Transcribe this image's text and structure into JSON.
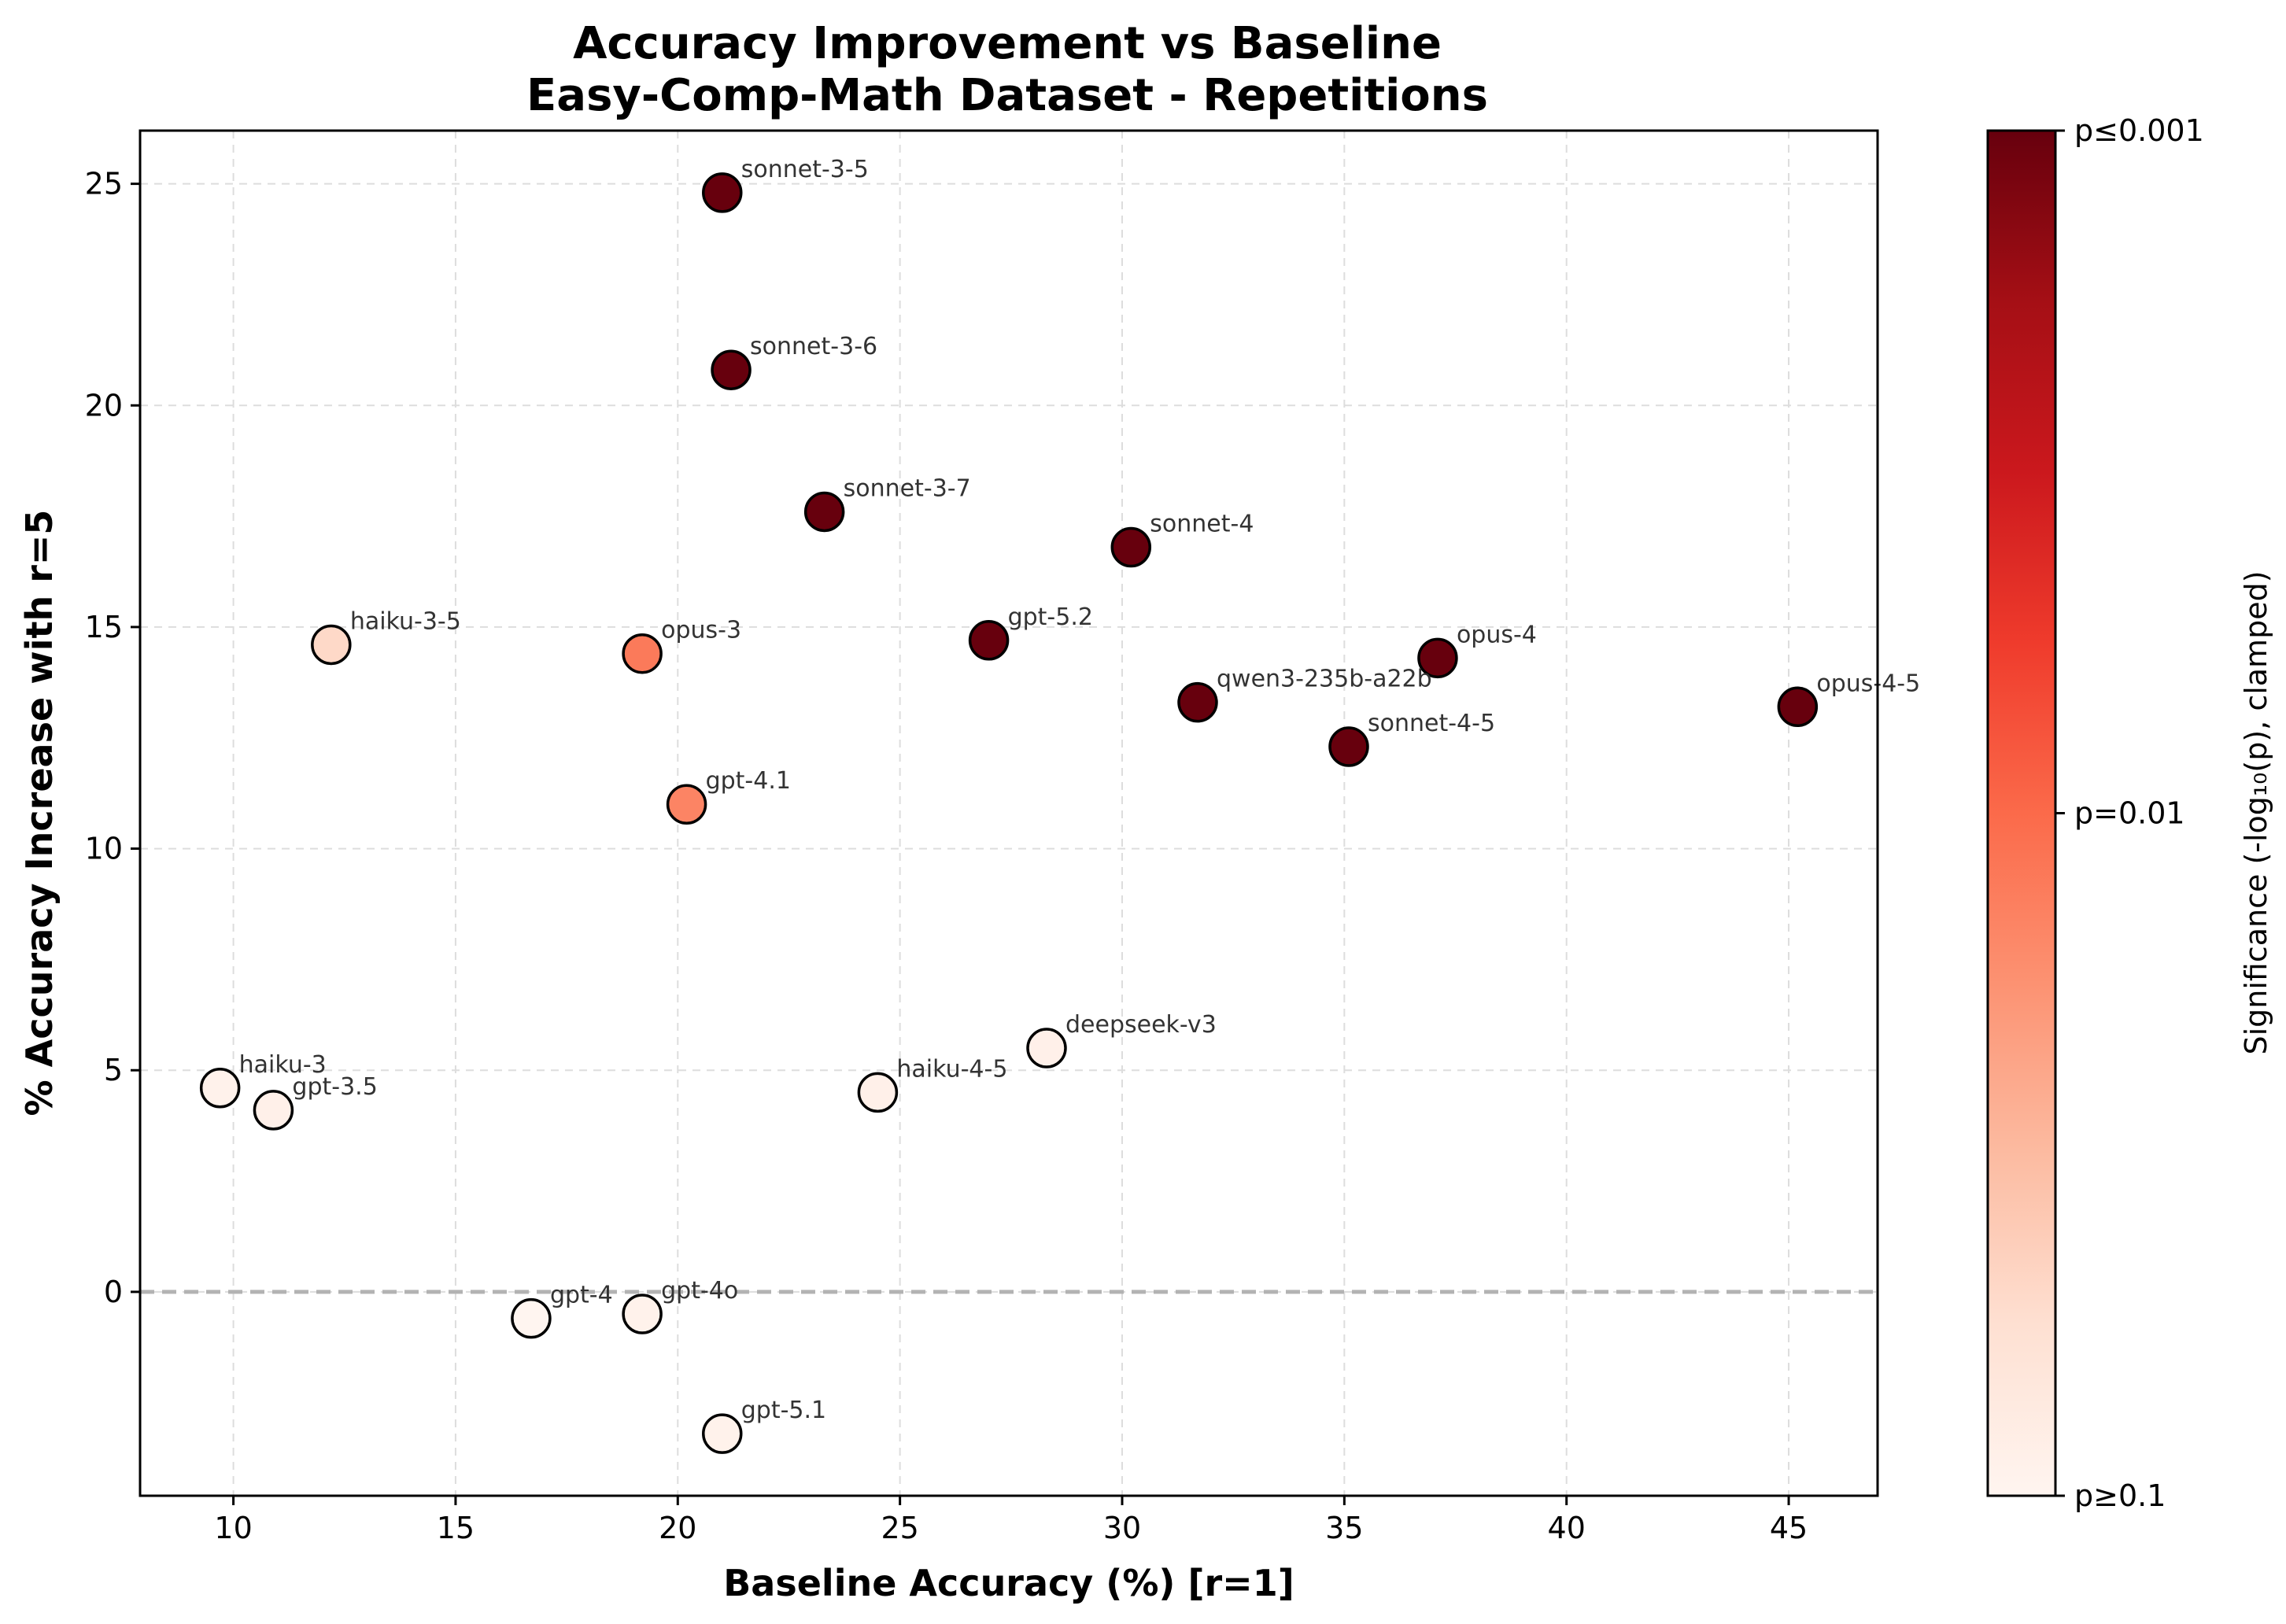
{
  "chart_data": {
    "type": "scatter",
    "title": "Accuracy Improvement vs Baseline",
    "subtitle": "Easy-Comp-Math Dataset - Repetitions",
    "xlabel": "Baseline Accuracy (%) [r=1]",
    "ylabel": "% Accuracy Increase with r=5",
    "xlim": [
      7.9,
      47.0
    ],
    "ylim": [
      -4.6,
      26.2
    ],
    "xticks": [
      10,
      15,
      20,
      25,
      30,
      35,
      40,
      45
    ],
    "yticks": [
      0,
      5,
      10,
      15,
      20,
      25
    ],
    "grid": true,
    "reference_line_y": 0,
    "colorbar": {
      "label": "Significance (-log₁₀(p), clamped)",
      "ticks": [
        "p≤0.001",
        "p=0.01",
        "p≥0.1"
      ],
      "colors": [
        "#fff5f0",
        "#fee0d2",
        "#fcbba1",
        "#fc9272",
        "#fb6a4a",
        "#ef3b2c",
        "#cb181d",
        "#a50f15",
        "#67000d"
      ]
    },
    "points": [
      {
        "label": "sonnet-3-5",
        "x": 21.0,
        "y": 24.8,
        "significance": 1.0
      },
      {
        "label": "sonnet-3-6",
        "x": 21.2,
        "y": 20.8,
        "significance": 1.0
      },
      {
        "label": "sonnet-3-7",
        "x": 23.3,
        "y": 17.6,
        "significance": 1.0
      },
      {
        "label": "sonnet-4",
        "x": 30.2,
        "y": 16.8,
        "significance": 1.0
      },
      {
        "label": "haiku-3-5",
        "x": 12.2,
        "y": 14.6,
        "significance": 0.15
      },
      {
        "label": "opus-3",
        "x": 19.2,
        "y": 14.4,
        "significance": 0.45
      },
      {
        "label": "gpt-5.2",
        "x": 27.0,
        "y": 14.7,
        "significance": 1.0
      },
      {
        "label": "opus-4",
        "x": 37.1,
        "y": 14.3,
        "significance": 1.0
      },
      {
        "label": "qwen3-235b-a22b",
        "x": 31.7,
        "y": 13.3,
        "significance": 1.0
      },
      {
        "label": "opus-4-5",
        "x": 45.2,
        "y": 13.2,
        "significance": 1.0
      },
      {
        "label": "sonnet-4-5",
        "x": 35.1,
        "y": 12.3,
        "significance": 1.0
      },
      {
        "label": "gpt-4.1",
        "x": 20.2,
        "y": 11.0,
        "significance": 0.42
      },
      {
        "label": "deepseek-v3",
        "x": 28.3,
        "y": 5.5,
        "significance": 0.03
      },
      {
        "label": "haiku-3",
        "x": 9.7,
        "y": 4.6,
        "significance": 0.02
      },
      {
        "label": "haiku-4-5",
        "x": 24.5,
        "y": 4.5,
        "significance": 0.03
      },
      {
        "label": "gpt-3.5",
        "x": 10.9,
        "y": 4.1,
        "significance": 0.03
      },
      {
        "label": "gpt-4",
        "x": 16.7,
        "y": -0.6,
        "significance": 0.0
      },
      {
        "label": "gpt-4o",
        "x": 19.2,
        "y": -0.5,
        "significance": 0.02
      },
      {
        "label": "gpt-5.1",
        "x": 21.0,
        "y": -3.2,
        "significance": 0.02
      }
    ]
  }
}
